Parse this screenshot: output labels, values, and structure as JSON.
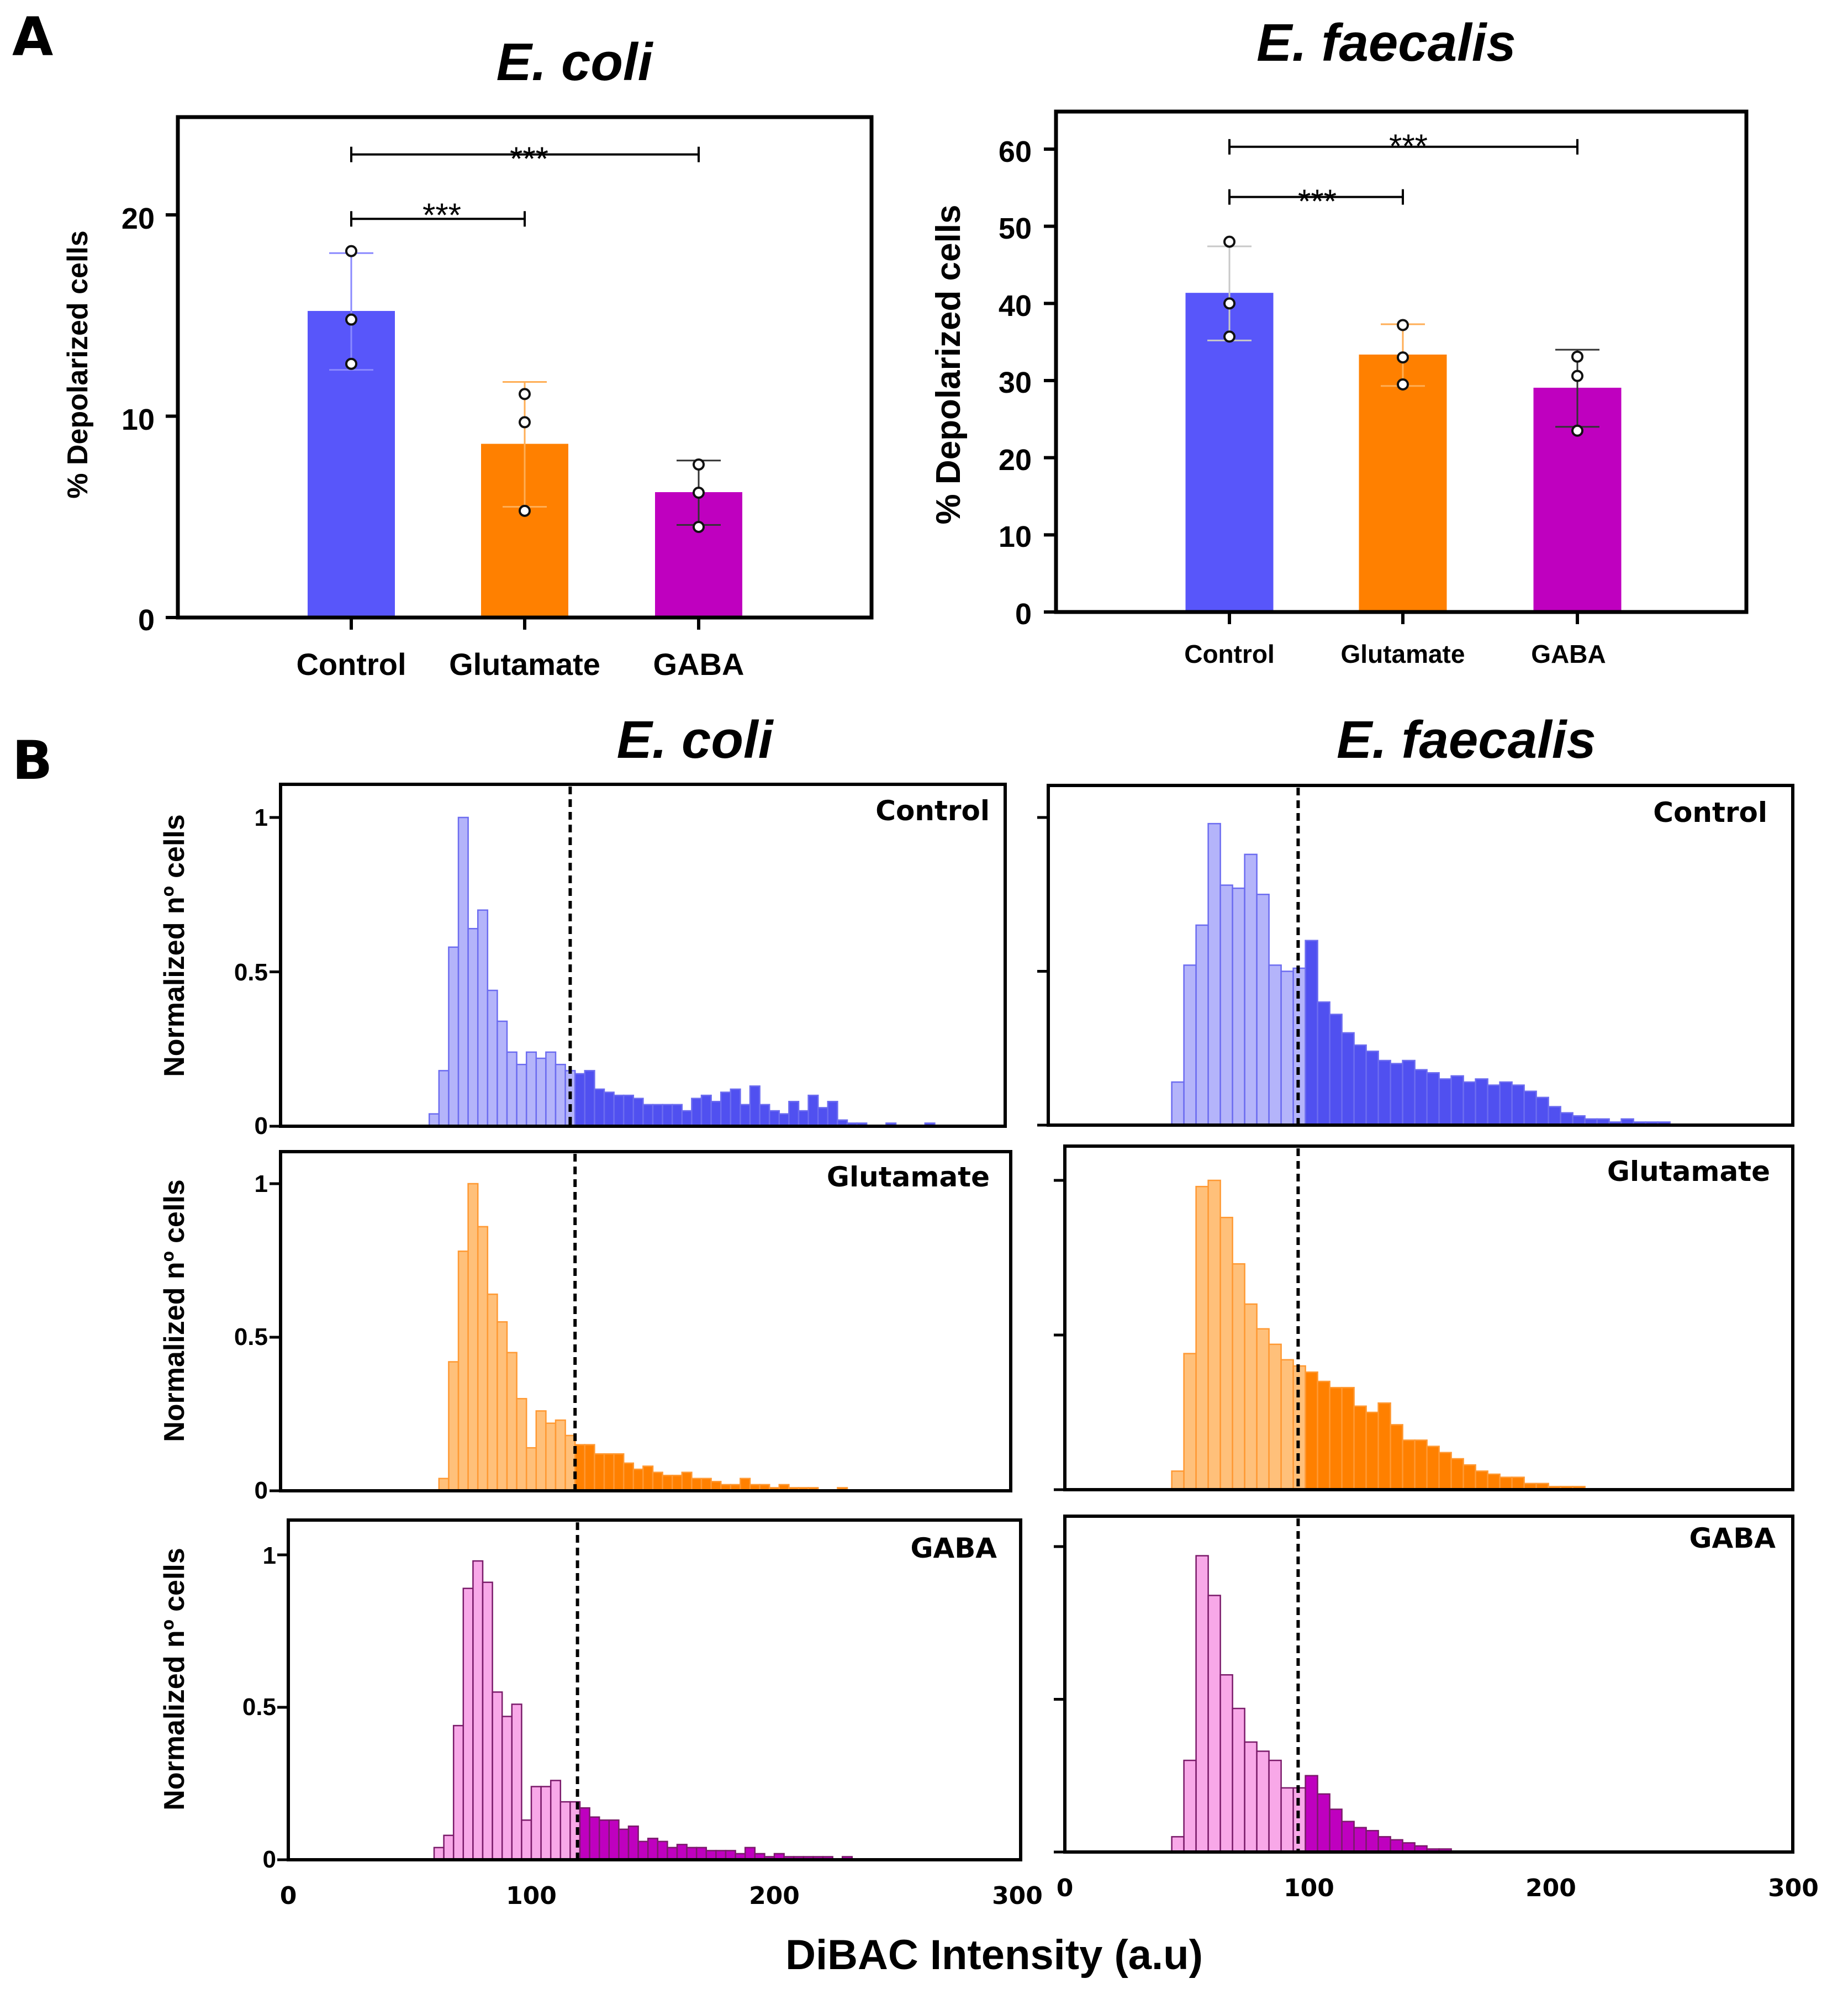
{
  "panels": {
    "a": "A",
    "b": "B"
  },
  "chart_data": [
    {
      "type": "bar",
      "title": "E. coli",
      "ylabel": "% Depolarized cells",
      "ylim": [
        0,
        25
      ],
      "yticks": [
        0,
        10,
        20
      ],
      "categories": [
        "Control",
        "Glutamate",
        "GABA"
      ],
      "values": [
        15.2,
        8.6,
        6.2
      ],
      "sd": [
        2.9,
        3.1,
        1.6
      ],
      "points": [
        [
          18.2,
          14.8,
          12.6
        ],
        [
          11.1,
          9.7,
          5.3
        ],
        [
          7.6,
          6.2,
          4.5
        ]
      ],
      "colors": [
        "#5856fa",
        "#ff8000",
        "#bf00bf"
      ],
      "error_colors": [
        "#8a89ff",
        "#ffae55",
        "#333333"
      ],
      "significance": [
        {
          "from": 0,
          "to": 1,
          "label": "***",
          "y": 19.8
        },
        {
          "from": 0,
          "to": 2,
          "label": "***",
          "y": 23.0
        }
      ]
    },
    {
      "type": "bar",
      "title": "E. faecalis",
      "ylabel": "% Depolarized cells",
      "ylim": [
        0,
        65
      ],
      "yticks": [
        0,
        10,
        20,
        30,
        40,
        50,
        60
      ],
      "categories": [
        "Control",
        "Glutamate",
        "GABA"
      ],
      "values": [
        41.3,
        33.3,
        29.0
      ],
      "sd": [
        6.1,
        4.0,
        5.0
      ],
      "points": [
        [
          48.0,
          40.0,
          35.7
        ],
        [
          37.2,
          33.0,
          29.5
        ],
        [
          33.1,
          30.6,
          23.5
        ]
      ],
      "colors": [
        "#5856fa",
        "#ff8000",
        "#bf00bf"
      ],
      "error_colors": [
        "#c8c8c8",
        "#ffae55",
        "#333333"
      ],
      "significance": [
        {
          "from": 0,
          "to": 1,
          "label": "***",
          "y": 53.8
        },
        {
          "from": 0,
          "to": 2,
          "label": "***",
          "y": 60.3
        }
      ]
    },
    {
      "type": "histogram",
      "title": "E. coli",
      "condition": "Control",
      "ylabel": "Normalized nº cells",
      "xlim": [
        0,
        300
      ],
      "ylim": [
        0,
        1.1
      ],
      "yticks": [
        0.0,
        0.5,
        1.0
      ],
      "bin_start": 58,
      "bin_width": 4,
      "threshold": 116,
      "light_color": "#b4b4fa",
      "dark_color": "#5050f0",
      "edge_color": "#6c6cf0",
      "values": [
        0.04,
        0.18,
        0.58,
        1.0,
        0.64,
        0.7,
        0.44,
        0.34,
        0.24,
        0.2,
        0.24,
        0.22,
        0.24,
        0.2,
        0.18,
        0.17,
        0.18,
        0.12,
        0.11,
        0.1,
        0.1,
        0.09,
        0.07,
        0.07,
        0.07,
        0.07,
        0.05,
        0.09,
        0.1,
        0.08,
        0.11,
        0.12,
        0.07,
        0.13,
        0.07,
        0.05,
        0.04,
        0.08,
        0.05,
        0.1,
        0.06,
        0.08,
        0.02,
        0.01,
        0.01,
        0.0,
        0.0,
        0.01,
        0.0,
        0.0,
        0.0,
        0.01,
        0.0,
        0.0,
        0.0
      ]
    },
    {
      "type": "histogram",
      "title": "E. faecalis",
      "condition": "Control",
      "ylabel": "",
      "xlim": [
        0,
        300
      ],
      "ylim": [
        0,
        1.1
      ],
      "yticks": [
        0.0,
        0.5,
        1.0
      ],
      "bin_start": 44,
      "bin_width": 5,
      "threshold": 96,
      "light_color": "#b4b4fa",
      "dark_color": "#5050f0",
      "edge_color": "#6c6cf0",
      "values": [
        0.14,
        0.52,
        0.65,
        0.98,
        0.78,
        0.77,
        0.88,
        0.75,
        0.52,
        0.5,
        0.51,
        0.6,
        0.4,
        0.36,
        0.3,
        0.26,
        0.24,
        0.21,
        0.2,
        0.21,
        0.18,
        0.17,
        0.15,
        0.16,
        0.14,
        0.15,
        0.13,
        0.14,
        0.13,
        0.11,
        0.09,
        0.06,
        0.04,
        0.03,
        0.02,
        0.02,
        0.01,
        0.02,
        0.01,
        0.01,
        0.01
      ]
    },
    {
      "type": "histogram",
      "title": "E. coli",
      "condition": "Glutamate",
      "ylabel": "Normalized nº cells",
      "xlim": [
        0,
        300
      ],
      "ylim": [
        0,
        1.1
      ],
      "yticks": [
        0.0,
        0.5,
        1.0
      ],
      "bin_start": 62,
      "bin_width": 4,
      "threshold": 118,
      "light_color": "#ffc07a",
      "dark_color": "#ff8000",
      "edge_color": "#ff9933",
      "values": [
        0.04,
        0.42,
        0.78,
        1.0,
        0.86,
        0.64,
        0.55,
        0.45,
        0.3,
        0.14,
        0.26,
        0.22,
        0.23,
        0.18,
        0.15,
        0.15,
        0.12,
        0.12,
        0.12,
        0.09,
        0.07,
        0.08,
        0.06,
        0.05,
        0.05,
        0.06,
        0.04,
        0.04,
        0.03,
        0.02,
        0.02,
        0.04,
        0.02,
        0.02,
        0.01,
        0.02,
        0.01,
        0.01,
        0.01,
        0.0,
        0.0,
        0.01,
        0.0,
        0.0,
        0.0,
        0.0,
        0.0,
        0.0
      ]
    },
    {
      "type": "histogram",
      "title": "E. faecalis",
      "condition": "Glutamate",
      "ylabel": "",
      "xlim": [
        0,
        300
      ],
      "ylim": [
        0,
        1.1
      ],
      "yticks": [
        0.0,
        0.5,
        1.0
      ],
      "bin_start": 44,
      "bin_width": 5,
      "threshold": 96,
      "light_color": "#ffc07a",
      "dark_color": "#ff8000",
      "edge_color": "#ff9933",
      "values": [
        0.06,
        0.44,
        0.98,
        1.0,
        0.88,
        0.73,
        0.6,
        0.52,
        0.47,
        0.42,
        0.4,
        0.38,
        0.35,
        0.33,
        0.33,
        0.27,
        0.25,
        0.28,
        0.21,
        0.16,
        0.16,
        0.14,
        0.12,
        0.1,
        0.08,
        0.06,
        0.05,
        0.04,
        0.04,
        0.02,
        0.02,
        0.01,
        0.01,
        0.01,
        0.0
      ]
    },
    {
      "type": "histogram",
      "title": "E. coli",
      "condition": "GABA",
      "ylabel": "Normalized nº cells",
      "xlim": [
        0,
        300
      ],
      "ylim": [
        0,
        1.1
      ],
      "yticks": [
        0.0,
        0.5,
        1.0
      ],
      "bin_start": 60,
      "bin_width": 4,
      "threshold": 119,
      "light_color": "#f8a8e8",
      "dark_color": "#bf00bf",
      "edge_color": "#7a1b6a",
      "values": [
        0.04,
        0.08,
        0.44,
        0.89,
        0.98,
        0.91,
        0.55,
        0.47,
        0.51,
        0.13,
        0.24,
        0.24,
        0.26,
        0.19,
        0.19,
        0.17,
        0.14,
        0.13,
        0.13,
        0.1,
        0.11,
        0.06,
        0.07,
        0.06,
        0.04,
        0.05,
        0.04,
        0.04,
        0.03,
        0.03,
        0.03,
        0.02,
        0.04,
        0.02,
        0.01,
        0.02,
        0.01,
        0.01,
        0.01,
        0.01,
        0.01,
        0.0,
        0.01,
        0.0,
        0.0
      ]
    },
    {
      "type": "histogram",
      "title": "E. faecalis",
      "condition": "GABA",
      "ylabel": "",
      "xlim": [
        0,
        300
      ],
      "ylim": [
        0,
        1.1
      ],
      "yticks": [
        0.0,
        0.5,
        1.0
      ],
      "bin_start": 44,
      "bin_width": 5,
      "threshold": 96,
      "light_color": "#f8a8e8",
      "dark_color": "#bf00bf",
      "edge_color": "#7a1b6a",
      "values": [
        0.05,
        0.3,
        0.97,
        0.84,
        0.58,
        0.47,
        0.36,
        0.33,
        0.3,
        0.21,
        0.21,
        0.25,
        0.19,
        0.14,
        0.1,
        0.08,
        0.07,
        0.05,
        0.04,
        0.03,
        0.02,
        0.01,
        0.01,
        0.0
      ]
    }
  ],
  "x_axis": {
    "label": "DiBAC Intensity (a.u)",
    "ticks": [
      "0",
      "100",
      "200",
      "300"
    ]
  }
}
